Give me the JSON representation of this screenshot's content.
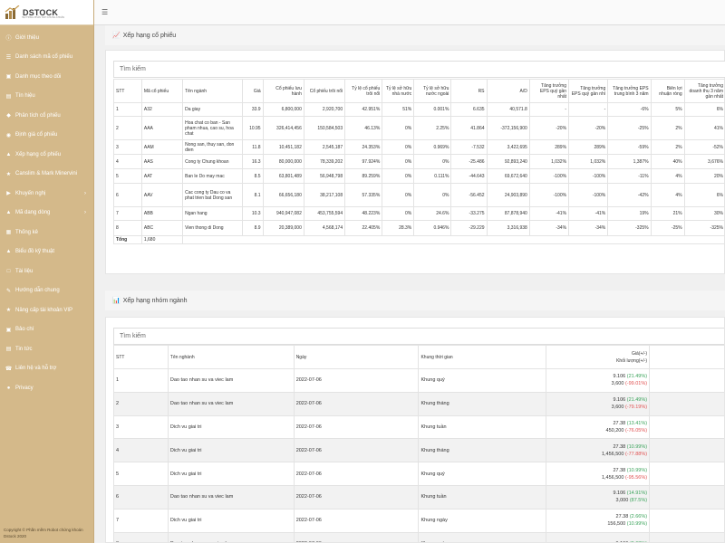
{
  "brand": {
    "name": "DSTOCK",
    "tagline": "HỆ THỐNG PHÂN TÍCH CHỨNG KHOÁN"
  },
  "sidebar": {
    "items": [
      {
        "label": "Giới thiệu",
        "icon": "info-icon",
        "arrow": false
      },
      {
        "label": "Danh sách mã cổ phiếu",
        "icon": "list-icon",
        "arrow": false
      },
      {
        "label": "Danh mục theo dõi",
        "icon": "watchlist-icon",
        "arrow": false
      },
      {
        "label": "Tín hiệu",
        "icon": "signal-icon",
        "arrow": false
      },
      {
        "label": "Phân tích cổ phiếu",
        "icon": "analysis-icon",
        "arrow": false
      },
      {
        "label": "Định giá cổ phiếu",
        "icon": "valuation-icon",
        "arrow": false
      },
      {
        "label": "Xếp hạng cổ phiếu",
        "icon": "ranking-icon",
        "arrow": false
      },
      {
        "label": "Canslim & Mark Minervini",
        "icon": "canslim-icon",
        "arrow": false
      },
      {
        "label": "Khuyến nghị",
        "icon": "recommend-icon",
        "arrow": true
      },
      {
        "label": "Mã dang dòng",
        "icon": "trend-icon",
        "arrow": true
      },
      {
        "label": "Thống kê",
        "icon": "stats-icon",
        "arrow": false
      },
      {
        "label": "Biểu đồ kỹ thuật",
        "icon": "chart-icon",
        "arrow": false
      },
      {
        "label": "Tài liệu",
        "icon": "document-icon",
        "arrow": false
      },
      {
        "label": "Hướng dẫn chung",
        "icon": "guide-icon",
        "arrow": false
      },
      {
        "label": "Nâng cấp tài khoản VIP",
        "icon": "vip-icon",
        "arrow": false
      },
      {
        "label": "Bảo chí",
        "icon": "press-icon",
        "arrow": false
      },
      {
        "label": "Tin tức",
        "icon": "news-icon",
        "arrow": false
      },
      {
        "label": "Liên hệ và hỗ trợ",
        "icon": "contact-icon",
        "arrow": false
      },
      {
        "label": "Privacy",
        "icon": "privacy-icon",
        "arrow": false
      }
    ],
    "copyright_line1": "Copyright © Phần mềm Robot chứng khoán",
    "copyright_line2": "Dstock 2020"
  },
  "stock_ranking": {
    "title": "Xếp hạng cổ phiếu",
    "search_placeholder": "Tìm kiếm",
    "headers": [
      "STT",
      "Mã cổ phiếu",
      "Tên ngành",
      "Giá",
      "Cổ phiếu lưu hành",
      "Cổ phiếu trôi nổi",
      "Tỷ lệ cổ phiếu trôi nổi",
      "Tỷ lệ sở hữu nhà nước",
      "Tỷ lệ sở hữu nước ngoài",
      "RS",
      "A/D",
      "Tăng trưởng EPS quý gần nhất",
      "Tăng trưởng EPS quý gần nhì",
      "Tăng trưởng EPS trung bình 3 năm",
      "Biên lợi nhuận ròng",
      "Tăng trưởng doanh thu 3 năm gần nhất"
    ],
    "rows": [
      [
        "1",
        "A32",
        "Da giay",
        "33.9",
        "6,800,000",
        "2,920,700",
        "42.951%",
        "51%",
        "0.001%",
        "6.635",
        "40,571.8",
        "-",
        "-",
        "-6%",
        "5%",
        "6%"
      ],
      [
        "2",
        "AAA",
        "Hoa chat co ban - San pham nhua, cao su, hoa chat",
        "10.95",
        "326,414,456",
        "150,584,503",
        "46.13%",
        "0%",
        "2.25%",
        "41.864",
        "-372,156,900",
        "-20%",
        "-20%",
        "-25%",
        "2%",
        "41%"
      ],
      [
        "3",
        "AAM",
        "Nong san, thuy san, don dien",
        "11.8",
        "10,451,182",
        "2,545,187",
        "24.353%",
        "0%",
        "0.969%",
        "-7.532",
        "3,422,695",
        "289%",
        "289%",
        "-59%",
        "2%",
        "-52%"
      ],
      [
        "4",
        "AAS",
        "Cong ty Chung khoan",
        "16.3",
        "80,000,000",
        "78,339,202",
        "97.924%",
        "0%",
        "0%",
        "-25.486",
        "92,893,240",
        "1,032%",
        "1,032%",
        "1,387%",
        "40%",
        "3,676%"
      ],
      [
        "5",
        "AAT",
        "Ban le Do may mac",
        "8.5",
        "63,801,489",
        "56,948,798",
        "89.259%",
        "0%",
        "0.111%",
        "-44.643",
        "69,672,640",
        "-100%",
        "-100%",
        "-11%",
        "4%",
        "20%"
      ],
      [
        "6",
        "AAV",
        "Cac cong ty Dau co va phat trien bat Dong san",
        "8.1",
        "66,656,180",
        "38,217,108",
        "57.335%",
        "0%",
        "0%",
        "-56.452",
        "24,903,890",
        "-100%",
        "-100%",
        "-42%",
        "4%",
        "6%"
      ],
      [
        "7",
        "ABB",
        "Ngan hang",
        "10.3",
        "940,947,082",
        "453,755,594",
        "48.223%",
        "0%",
        "24.6%",
        "-33.275",
        "87,878,940",
        "-41%",
        "-41%",
        "19%",
        "21%",
        "30%"
      ],
      [
        "8",
        "ABC",
        "Vien thong di Dong",
        "8.9",
        "20,389,000",
        "4,568,174",
        "22.405%",
        "28.3%",
        "0.946%",
        "-29.229",
        "3,316,938",
        "-34%",
        "-34%",
        "-325%",
        "-25%",
        "-325%"
      ]
    ],
    "total_label": "Tổng",
    "total_value": "1,680"
  },
  "group_ranking": {
    "title": "Xếp hạng nhóm ngành",
    "search_placeholder": "Tìm kiếm",
    "headers": {
      "stt": "STT",
      "industry": "Tên nghành",
      "date": "Ngày",
      "timeframe": "Khung thời gian",
      "price": "Giá(+/-)",
      "volume": "Khối lượng(+/-)"
    },
    "rows": [
      {
        "stt": "1",
        "industry": "Dao tao nhan su va viec lam",
        "date": "2022-07-06",
        "timeframe": "Khung quý",
        "price": "9.106",
        "price_chg": "(21.49%)",
        "price_dir": "up",
        "volume": "3,600",
        "volume_chg": "(-99.01%)",
        "volume_dir": "down"
      },
      {
        "stt": "2",
        "industry": "Dao tao nhan su va viec lam",
        "date": "2022-07-06",
        "timeframe": "Khung tháng",
        "price": "9.106",
        "price_chg": "(21.49%)",
        "price_dir": "up",
        "volume": "3,600",
        "volume_chg": "(-79.19%)",
        "volume_dir": "down"
      },
      {
        "stt": "3",
        "industry": "Dich vu giai tri",
        "date": "2022-07-06",
        "timeframe": "Khung tuần",
        "price": "27.38",
        "price_chg": "(13.41%)",
        "price_dir": "up",
        "volume": "450,200",
        "volume_chg": "(-76.05%)",
        "volume_dir": "down"
      },
      {
        "stt": "4",
        "industry": "Dich vu giai tri",
        "date": "2022-07-06",
        "timeframe": "Khung tháng",
        "price": "27.38",
        "price_chg": "(10.99%)",
        "price_dir": "up",
        "volume": "1,456,500",
        "volume_chg": "(-77.88%)",
        "volume_dir": "down"
      },
      {
        "stt": "5",
        "industry": "Dich vu giai tri",
        "date": "2022-07-06",
        "timeframe": "Khung quý",
        "price": "27.38",
        "price_chg": "(10.99%)",
        "price_dir": "up",
        "volume": "1,456,500",
        "volume_chg": "(-95.56%)",
        "volume_dir": "down"
      },
      {
        "stt": "6",
        "industry": "Dao tao nhan su va viec lam",
        "date": "2022-07-06",
        "timeframe": "Khung tuần",
        "price": "9.106",
        "price_chg": "(14.91%)",
        "price_dir": "up",
        "volume": "3,000",
        "volume_chg": "(87.5%)",
        "volume_dir": "up"
      },
      {
        "stt": "7",
        "industry": "Dich vu giai tri",
        "date": "2022-07-06",
        "timeframe": "Khung ngày",
        "price": "27.38",
        "price_chg": "(2.66%)",
        "price_dir": "up",
        "volume": "156,500",
        "volume_chg": "(10.99%)",
        "volume_dir": "up"
      },
      {
        "stt": "8",
        "industry": "Dao tao nhan su va viec lam",
        "date": "2022-07-06",
        "timeframe": "Khung ngày",
        "price": "9.106",
        "price_chg": "(0.68%)",
        "price_dir": "up",
        "volume": "",
        "volume_chg": "",
        "volume_dir": "up"
      }
    ]
  }
}
